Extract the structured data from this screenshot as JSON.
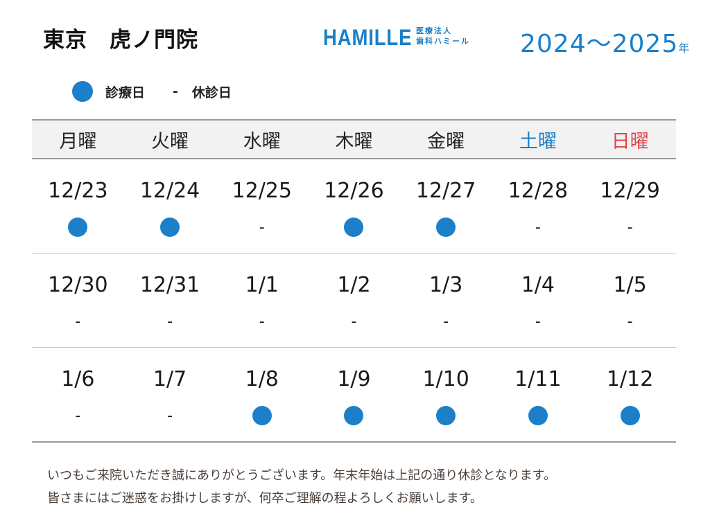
{
  "header": {
    "clinic_name": "東京　虎ノ門院",
    "logo_text": "HAMILLE",
    "logo_sub_top": "医療法人",
    "logo_sub_bottom": "歯科ハミール",
    "year_range": "2024～2025",
    "year_suffix": "年"
  },
  "colors": {
    "accent": "#1b7fc9",
    "saturday": "#1b7fc9",
    "sunday": "#e0454b"
  },
  "legend": {
    "open_label": "診療日",
    "closed_symbol": "-",
    "closed_label": "休診日"
  },
  "days": [
    {
      "label": "月曜",
      "color": "#222222"
    },
    {
      "label": "火曜",
      "color": "#222222"
    },
    {
      "label": "水曜",
      "color": "#222222"
    },
    {
      "label": "木曜",
      "color": "#222222"
    },
    {
      "label": "金曜",
      "color": "#222222"
    },
    {
      "label": "土曜",
      "color": "#1b7fc9"
    },
    {
      "label": "日曜",
      "color": "#e0454b"
    }
  ],
  "weeks": [
    [
      {
        "date": "12/23",
        "open": true
      },
      {
        "date": "12/24",
        "open": true
      },
      {
        "date": "12/25",
        "open": false
      },
      {
        "date": "12/26",
        "open": true
      },
      {
        "date": "12/27",
        "open": true
      },
      {
        "date": "12/28",
        "open": false
      },
      {
        "date": "12/29",
        "open": false
      }
    ],
    [
      {
        "date": "12/30",
        "open": false
      },
      {
        "date": "12/31",
        "open": false
      },
      {
        "date": "1/1",
        "open": false
      },
      {
        "date": "1/2",
        "open": false
      },
      {
        "date": "1/3",
        "open": false
      },
      {
        "date": "1/4",
        "open": false
      },
      {
        "date": "1/5",
        "open": false
      }
    ],
    [
      {
        "date": "1/6",
        "open": false
      },
      {
        "date": "1/7",
        "open": false
      },
      {
        "date": "1/8",
        "open": true
      },
      {
        "date": "1/9",
        "open": true
      },
      {
        "date": "1/10",
        "open": true
      },
      {
        "date": "1/11",
        "open": true
      },
      {
        "date": "1/12",
        "open": true
      }
    ]
  ],
  "closed_mark": "-",
  "notice": {
    "line1": "いつもご来院いただき誠にありがとうございます。年末年始は上記の通り休診となります。",
    "line2": "皆さまにはご迷惑をお掛けしますが、何卒ご理解の程よろしくお願いします。"
  }
}
